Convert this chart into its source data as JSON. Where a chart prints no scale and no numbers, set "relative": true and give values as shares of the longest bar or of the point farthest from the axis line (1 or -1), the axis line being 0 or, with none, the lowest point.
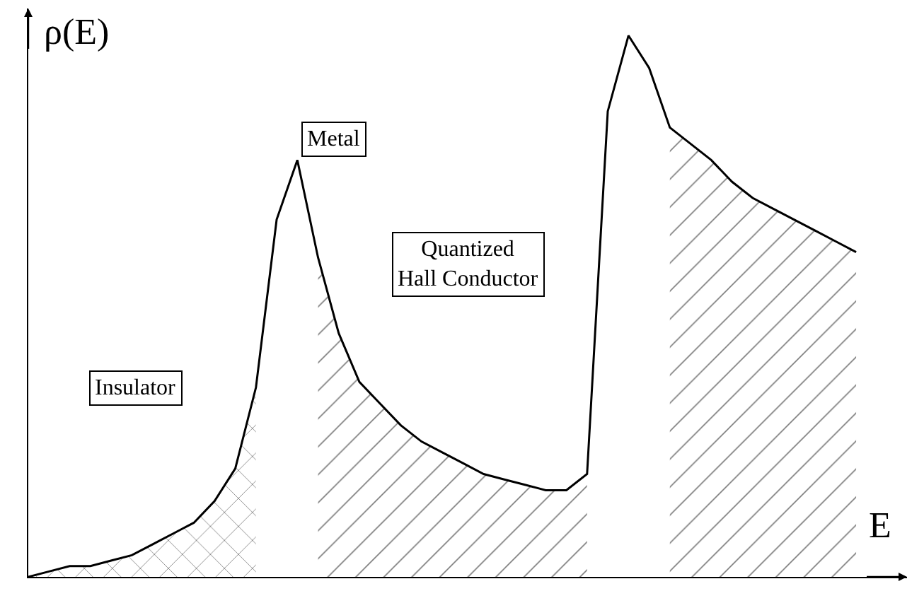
{
  "chart_data": {
    "type": "line",
    "relative": true,
    "xlabel": "E",
    "ylabel": "ρ(E)",
    "categories": [
      null,
      null,
      null,
      null,
      null,
      null,
      null,
      null,
      null,
      null,
      null,
      null,
      null,
      null,
      null,
      null,
      null,
      null,
      null,
      null,
      null,
      null,
      null,
      null,
      null,
      null,
      null,
      null,
      null,
      null,
      null,
      null,
      null,
      null,
      null,
      null,
      null,
      null,
      null,
      null,
      null
    ],
    "series": [
      {
        "color": "#000000",
        "values": [
          0,
          0.01,
          0.02,
          0.02,
          0.03,
          0.04,
          0.06,
          0.08,
          0.1,
          0.14,
          0.2,
          0.35,
          0.66,
          0.77,
          0.59,
          0.45,
          0.36,
          0.32,
          0.28,
          0.25,
          0.23,
          0.21,
          0.19,
          0.18,
          0.17,
          0.16,
          0.16,
          0.19,
          0.86,
          1.0,
          0.94,
          0.83,
          0.8,
          0.77,
          0.73,
          0.7,
          0.68,
          0.66,
          0.64,
          0.62,
          0.6
        ]
      },
      {
        "type": "area",
        "color": "#000000",
        "values": [
          0,
          0.01,
          0.02,
          0.02,
          0.03,
          0.04,
          0.06,
          0.08,
          0.1,
          0.14,
          0.2,
          0.35,
          null,
          null,
          null,
          null,
          null,
          null,
          null,
          null,
          null,
          null,
          null,
          null,
          null,
          null,
          null,
          null,
          null,
          null,
          null,
          null,
          null,
          null,
          null,
          null,
          null,
          null,
          null,
          null,
          null
        ]
      },
      {
        "type": "area",
        "color": "#000000",
        "values": [
          null,
          null,
          null,
          null,
          null,
          null,
          null,
          null,
          null,
          null,
          null,
          null,
          null,
          null,
          0.59,
          0.45,
          0.36,
          0.32,
          0.28,
          0.25,
          0.23,
          0.21,
          0.19,
          0.18,
          0.17,
          0.16,
          0.16,
          0.19,
          null,
          null,
          null,
          null,
          null,
          null,
          null,
          null,
          null,
          null,
          null,
          null,
          null
        ]
      },
      {
        "type": "area",
        "color": "#000000",
        "values": [
          null,
          null,
          null,
          null,
          null,
          null,
          null,
          null,
          null,
          null,
          null,
          null,
          null,
          null,
          null,
          null,
          null,
          null,
          null,
          null,
          null,
          null,
          null,
          null,
          null,
          null,
          null,
          null,
          null,
          null,
          null,
          0.83,
          0.8,
          0.77,
          0.73,
          0.7,
          0.68,
          0.66,
          0.64,
          0.62,
          0.6
        ]
      }
    ],
    "annotations": [
      "Metal",
      "Quantized\nHall Conductor",
      "Insulator"
    ]
  }
}
